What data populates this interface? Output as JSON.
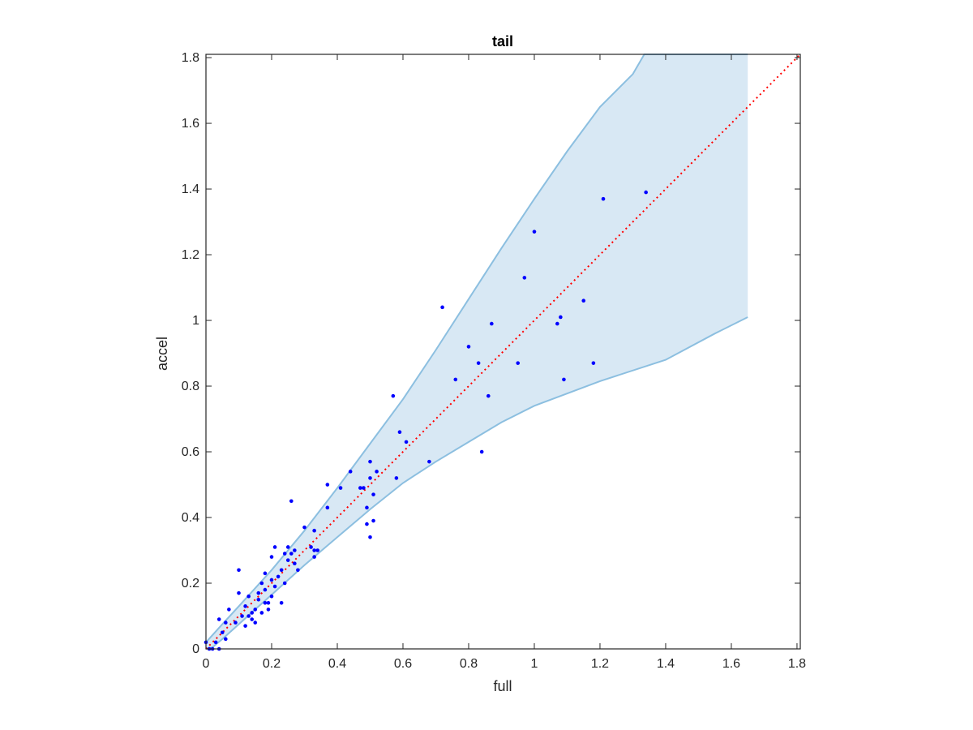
{
  "chart_data": {
    "type": "scatter",
    "title": "tail",
    "xlabel": "full",
    "ylabel": "accel",
    "xlim": [
      0,
      1.81
    ],
    "ylim": [
      0,
      1.81
    ],
    "xticks": [
      0,
      0.2,
      0.4,
      0.6,
      0.8,
      1,
      1.2,
      1.4,
      1.6,
      1.8
    ],
    "yticks": [
      0,
      0.2,
      0.4,
      0.6,
      0.8,
      1,
      1.2,
      1.4,
      1.6,
      1.8
    ],
    "xtick_labels": [
      "0",
      "0.2",
      "0.4",
      "0.6",
      "0.8",
      "1",
      "1.2",
      "1.4",
      "1.6",
      "1.8"
    ],
    "ytick_labels": [
      "0",
      "0.2",
      "0.4",
      "0.6",
      "0.8",
      "1",
      "1.2",
      "1.4",
      "1.6",
      "1.8"
    ],
    "grid": false,
    "colors": {
      "points": "#0000ff",
      "reference_line": "#ff0000",
      "band_fill": "#d8e8f4",
      "band_edge": "#8cbfe0",
      "axes": "#262626"
    },
    "reference_line": {
      "x": [
        0,
        1.81
      ],
      "y": [
        0,
        1.81
      ],
      "style": "dotted"
    },
    "band": {
      "upper": [
        [
          0,
          0.02
        ],
        [
          0.05,
          0.075
        ],
        [
          0.1,
          0.13
        ],
        [
          0.2,
          0.24
        ],
        [
          0.3,
          0.36
        ],
        [
          0.4,
          0.49
        ],
        [
          0.5,
          0.625
        ],
        [
          0.6,
          0.76
        ],
        [
          0.7,
          0.91
        ],
        [
          0.8,
          1.065
        ],
        [
          0.9,
          1.22
        ],
        [
          1.0,
          1.37
        ],
        [
          1.1,
          1.515
        ],
        [
          1.2,
          1.65
        ],
        [
          1.3,
          1.75
        ],
        [
          1.335,
          1.81
        ],
        [
          1.65,
          1.81
        ]
      ],
      "lower": [
        [
          1.65,
          1.01
        ],
        [
          1.55,
          0.96
        ],
        [
          1.4,
          0.88
        ],
        [
          1.2,
          0.815
        ],
        [
          1.0,
          0.74
        ],
        [
          0.9,
          0.69
        ],
        [
          0.8,
          0.63
        ],
        [
          0.7,
          0.57
        ],
        [
          0.6,
          0.505
        ],
        [
          0.5,
          0.425
        ],
        [
          0.4,
          0.34
        ],
        [
          0.3,
          0.255
        ],
        [
          0.2,
          0.165
        ],
        [
          0.15,
          0.12
        ],
        [
          0.1,
          0.075
        ],
        [
          0.05,
          0.03
        ],
        [
          0.02,
          0.005
        ],
        [
          0,
          0
        ]
      ]
    },
    "points": [
      [
        0.0,
        0.02
      ],
      [
        0.01,
        0.0
      ],
      [
        0.02,
        0.0
      ],
      [
        0.03,
        0.02
      ],
      [
        0.04,
        0.0
      ],
      [
        0.04,
        0.09
      ],
      [
        0.05,
        0.05
      ],
      [
        0.06,
        0.03
      ],
      [
        0.06,
        0.08
      ],
      [
        0.07,
        0.12
      ],
      [
        0.09,
        0.08
      ],
      [
        0.1,
        0.24
      ],
      [
        0.1,
        0.17
      ],
      [
        0.11,
        0.1
      ],
      [
        0.12,
        0.13
      ],
      [
        0.12,
        0.07
      ],
      [
        0.13,
        0.16
      ],
      [
        0.13,
        0.1
      ],
      [
        0.14,
        0.09
      ],
      [
        0.15,
        0.12
      ],
      [
        0.15,
        0.08
      ],
      [
        0.16,
        0.17
      ],
      [
        0.16,
        0.15
      ],
      [
        0.17,
        0.2
      ],
      [
        0.17,
        0.11
      ],
      [
        0.18,
        0.23
      ],
      [
        0.18,
        0.18
      ],
      [
        0.19,
        0.14
      ],
      [
        0.19,
        0.12
      ],
      [
        0.2,
        0.28
      ],
      [
        0.2,
        0.21
      ],
      [
        0.2,
        0.16
      ],
      [
        0.21,
        0.31
      ],
      [
        0.22,
        0.22
      ],
      [
        0.23,
        0.24
      ],
      [
        0.23,
        0.14
      ],
      [
        0.24,
        0.29
      ],
      [
        0.24,
        0.2
      ],
      [
        0.25,
        0.31
      ],
      [
        0.25,
        0.27
      ],
      [
        0.26,
        0.45
      ],
      [
        0.26,
        0.29
      ],
      [
        0.27,
        0.26
      ],
      [
        0.27,
        0.3
      ],
      [
        0.28,
        0.24
      ],
      [
        0.3,
        0.37
      ],
      [
        0.32,
        0.31
      ],
      [
        0.33,
        0.36
      ],
      [
        0.33,
        0.28
      ],
      [
        0.34,
        0.3
      ],
      [
        0.37,
        0.5
      ],
      [
        0.37,
        0.43
      ],
      [
        0.41,
        0.49
      ],
      [
        0.44,
        0.54
      ],
      [
        0.47,
        0.49
      ],
      [
        0.49,
        0.43
      ],
      [
        0.49,
        0.38
      ],
      [
        0.5,
        0.57
      ],
      [
        0.5,
        0.52
      ],
      [
        0.5,
        0.34
      ],
      [
        0.51,
        0.47
      ],
      [
        0.51,
        0.39
      ],
      [
        0.52,
        0.54
      ],
      [
        0.57,
        0.77
      ],
      [
        0.58,
        0.52
      ],
      [
        0.59,
        0.66
      ],
      [
        0.61,
        0.63
      ],
      [
        0.68,
        0.57
      ],
      [
        0.72,
        1.04
      ],
      [
        0.76,
        0.82
      ],
      [
        0.8,
        0.92
      ],
      [
        0.83,
        0.87
      ],
      [
        0.84,
        0.6
      ],
      [
        0.86,
        0.77
      ],
      [
        0.87,
        0.99
      ],
      [
        0.95,
        0.87
      ],
      [
        0.97,
        1.13
      ],
      [
        1.0,
        1.27
      ],
      [
        1.07,
        0.99
      ],
      [
        1.08,
        1.01
      ],
      [
        1.09,
        0.82
      ],
      [
        1.15,
        1.06
      ],
      [
        1.18,
        0.87
      ],
      [
        1.21,
        1.37
      ],
      [
        1.34,
        1.39
      ],
      [
        0.14,
        0.11
      ],
      [
        0.18,
        0.14
      ],
      [
        0.21,
        0.19
      ],
      [
        0.33,
        0.3
      ],
      [
        0.48,
        0.49
      ]
    ]
  }
}
